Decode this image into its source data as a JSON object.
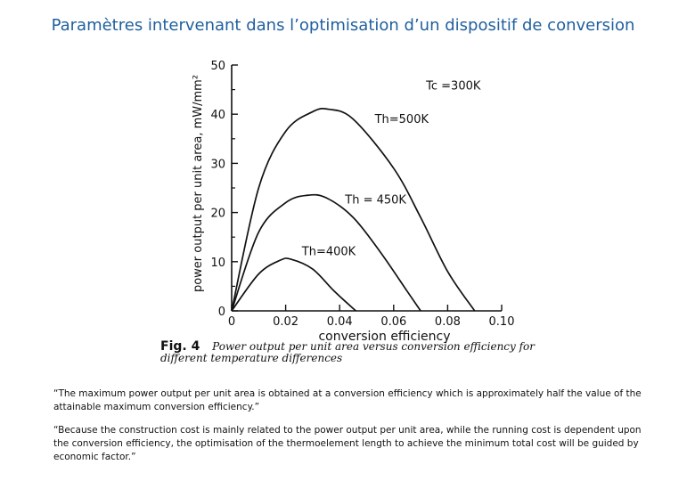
{
  "title": "Paramètres intervenant dans l’optimisation d’un dispositif de conversion",
  "figure": {
    "label": "Fig. 4",
    "caption_line1": "Power output per unit area versus conversion efficiency for",
    "caption_line2": "different temperature differences"
  },
  "quotes": [
    "“The maximum power output per unit area is obtained at a conversion efficiency which is approximately half the value of the attainable maximum conversion efficiency.”",
    "“Because the construction cost is mainly related to the power output per unit area, while the running cost is dependent upon the conversion efficiency, the optimisation of the thermoelement length to achieve the minimum total cost will be guided by economic factor.”"
  ],
  "colors": {
    "title": "#1f5f9e",
    "ink": "#111111"
  },
  "chart_data": {
    "type": "line",
    "xlabel": "conversion efficiency",
    "ylabel": "power output per unit area, mW/mm²",
    "xlim": [
      0,
      0.1
    ],
    "ylim": [
      0,
      50
    ],
    "xticks": [
      "0",
      "0.02",
      "0.04",
      "0.06",
      "0.08",
      "0.10"
    ],
    "yticks": [
      "0",
      "10",
      "20",
      "30",
      "40",
      "50"
    ],
    "grid": false,
    "annotations": [
      "Tc =300K",
      "Th=500K",
      "Th = 450K",
      "Th=400K"
    ],
    "series": [
      {
        "name": "Th=500K",
        "x": [
          0,
          0.01,
          0.02,
          0.03,
          0.036,
          0.045,
          0.06,
          0.07,
          0.08,
          0.09
        ],
        "y": [
          0,
          25,
          36.5,
          40.5,
          41,
          39,
          29,
          19,
          8,
          0
        ]
      },
      {
        "name": "Th = 450K",
        "x": [
          0,
          0.01,
          0.02,
          0.028,
          0.035,
          0.045,
          0.055,
          0.065,
          0.07
        ],
        "y": [
          0,
          16,
          22,
          23.5,
          23,
          19,
          12,
          4,
          0
        ]
      },
      {
        "name": "Th=400K",
        "x": [
          0,
          0.01,
          0.018,
          0.022,
          0.03,
          0.038,
          0.046
        ],
        "y": [
          0,
          7.5,
          10.3,
          10.5,
          8.5,
          4,
          0
        ]
      }
    ]
  }
}
